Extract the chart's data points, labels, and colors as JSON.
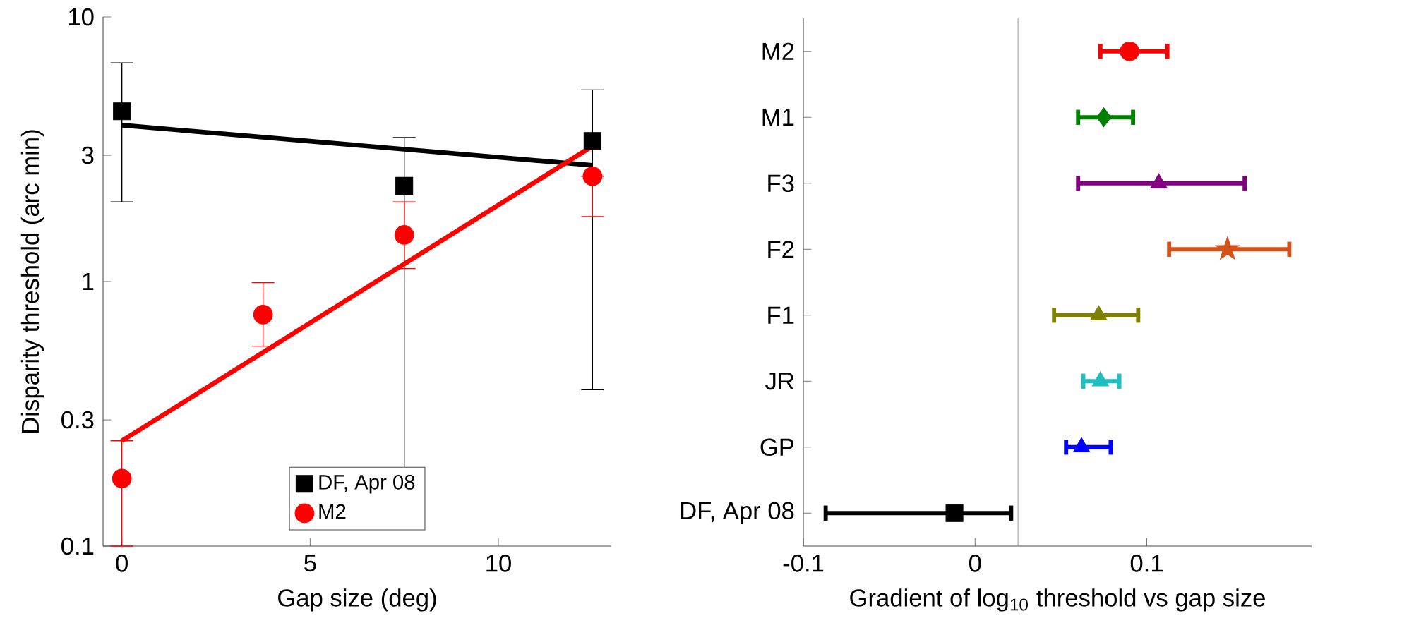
{
  "chart_data": [
    {
      "type": "scatter",
      "xlabel": "Gap size (deg)",
      "ylabel": "Disparity threshold (arc min)",
      "xlim": [
        -0.5,
        13
      ],
      "xticks": [
        0,
        5,
        10
      ],
      "ylim": [
        0.1,
        10
      ],
      "yticks": [
        0.1,
        0.3,
        1,
        3,
        10
      ],
      "log": "y",
      "legend": "bottom",
      "series": [
        {
          "name": "DF, Apr 08",
          "color": "#000000",
          "marker": "square",
          "x": [
            0,
            7.5,
            12.5
          ],
          "values": [
            4.4,
            2.3,
            3.4
          ],
          "errors": [
            [
              2.0,
              6.7
            ],
            [
              0.12,
              3.5
            ],
            [
              0.39,
              5.3
            ]
          ]
        },
        {
          "name": "M2",
          "color": "#ff0000",
          "marker": "circle",
          "x": [
            0,
            3.75,
            7.5,
            12.5
          ],
          "values": [
            0.18,
            0.75,
            1.5,
            2.5
          ],
          "errors": [
            [
              0.1,
              0.25
            ],
            [
              0.57,
              0.99
            ],
            [
              1.12,
              2.0
            ],
            [
              1.76,
              2.5
            ]
          ]
        },
        {
          "type": "line",
          "color": "#000000",
          "x": [
            0,
            12.5
          ],
          "values": [
            3.9,
            2.75
          ]
        },
        {
          "type": "line",
          "color": "#ff0000",
          "x": [
            0,
            12.5
          ],
          "values": [
            0.25,
            3.25
          ]
        }
      ]
    },
    {
      "type": "scatter",
      "orientation": "horizontal",
      "xlabel": "Gradient of log$_{10}$ threshold vs gap size",
      "categories": [
        "M2",
        "M1",
        "F3",
        "F2",
        "F1",
        "JR",
        "GP",
        "DF, Apr 08"
      ],
      "xlim": [
        -0.1,
        0.196
      ],
      "xticks": [
        -0.1,
        0,
        0.1
      ],
      "ref_lines": [
        {
          "axis": "x",
          "value": 0.025,
          "color": "#a0a0a0"
        }
      ],
      "series": [
        {
          "color": "#ff0000",
          "marker": "circle",
          "values": [
            0.09,
            null,
            null,
            null,
            null,
            null,
            null,
            null
          ],
          "errors": [
            [
              0.073,
              0.112
            ],
            null,
            null,
            null,
            null,
            null,
            null,
            null
          ]
        },
        {
          "color": "#008000",
          "marker": "diamond",
          "values": [
            null,
            0.075,
            null,
            null,
            null,
            null,
            null,
            null
          ],
          "errors": [
            null,
            [
              0.06,
              0.092
            ],
            null,
            null,
            null,
            null,
            null,
            null
          ]
        },
        {
          "color": "#800080",
          "marker": "triangle-down",
          "values": [
            null,
            null,
            0.107,
            null,
            null,
            null,
            null,
            null
          ],
          "errors": [
            null,
            null,
            [
              0.06,
              0.157
            ],
            null,
            null,
            null,
            null,
            null
          ]
        },
        {
          "color": "#d2521a",
          "marker": "star",
          "values": [
            null,
            null,
            null,
            0.147,
            null,
            null,
            null,
            null
          ],
          "errors": [
            null,
            null,
            null,
            [
              0.113,
              0.183
            ],
            null,
            null,
            null,
            null
          ]
        },
        {
          "color": "#808000",
          "marker": "triangle",
          "values": [
            null,
            null,
            null,
            null,
            0.072,
            null,
            null,
            null
          ],
          "errors": [
            null,
            null,
            null,
            null,
            [
              0.046,
              0.095
            ],
            null,
            null,
            null
          ]
        },
        {
          "color": "#20bfbf",
          "marker": "triangle-left",
          "values": [
            null,
            null,
            null,
            null,
            null,
            0.073,
            null,
            null
          ],
          "errors": [
            null,
            null,
            null,
            null,
            null,
            [
              0.063,
              0.084
            ],
            null,
            null
          ]
        },
        {
          "color": "#0000ff",
          "marker": "triangle-right",
          "values": [
            null,
            null,
            null,
            null,
            null,
            null,
            0.062,
            null
          ],
          "errors": [
            null,
            null,
            null,
            null,
            null,
            null,
            [
              0.053,
              0.079
            ],
            null
          ]
        },
        {
          "color": "#000000",
          "marker": "square",
          "values": [
            null,
            null,
            null,
            null,
            null,
            null,
            null,
            -0.012
          ],
          "errors": [
            null,
            null,
            null,
            null,
            null,
            null,
            null,
            [
              -0.087,
              0.021
            ]
          ]
        }
      ]
    }
  ]
}
